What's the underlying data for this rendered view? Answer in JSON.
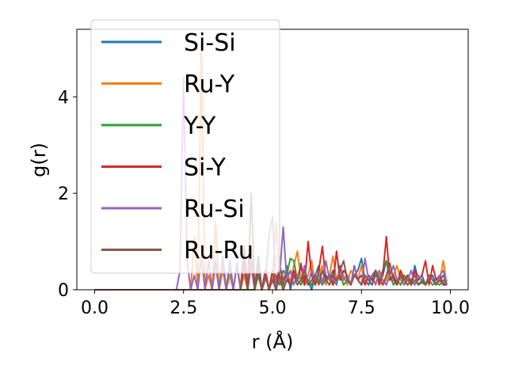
{
  "chart_data": {
    "type": "line",
    "title": "",
    "xlabel": "r (Å)",
    "ylabel": "g(r)",
    "xlim": [
      -0.5,
      10.5
    ],
    "ylim": [
      0,
      5.4
    ],
    "xticks": [
      0.0,
      2.5,
      5.0,
      7.5,
      10.0
    ],
    "xtick_labels": [
      "0.0",
      "2.5",
      "5.0",
      "7.5",
      "10.0"
    ],
    "yticks": [
      0,
      2,
      4
    ],
    "ytick_labels": [
      "0",
      "2",
      "4"
    ],
    "grid": false,
    "legend_position": "top-left",
    "series": [
      {
        "name": "Si-Si",
        "color": "#1f77b4",
        "x": [
          0.0,
          2.3,
          3.3,
          3.4,
          3.5,
          3.6,
          3.7,
          3.8,
          3.9,
          4.0,
          4.1,
          4.2,
          4.3,
          4.4,
          4.5,
          4.6,
          4.7,
          4.8,
          4.9,
          5.0,
          5.1,
          5.2,
          5.3,
          5.4,
          5.5,
          5.6,
          5.7,
          5.8,
          5.9,
          6.0,
          6.1,
          6.2,
          6.3,
          6.4,
          6.5,
          6.6,
          6.7,
          6.8,
          6.9,
          7.0,
          7.1,
          7.2,
          7.3,
          7.4,
          7.5,
          7.6,
          7.7,
          7.8,
          7.9,
          8.0,
          8.1,
          8.2,
          8.3,
          8.4,
          8.5,
          8.6,
          8.7,
          8.8,
          8.9,
          9.0,
          9.1,
          9.2,
          9.3,
          9.4,
          9.5,
          9.6,
          9.7,
          9.8,
          9.9
        ],
        "y": [
          0,
          0,
          0,
          0.6,
          0,
          0.5,
          0,
          0.6,
          0,
          0.55,
          0,
          0.6,
          0,
          0.5,
          0,
          0.7,
          0,
          0.4,
          0,
          0.35,
          0,
          0.3,
          0.1,
          0.5,
          0,
          0.3,
          0.2,
          0.55,
          0.1,
          0.2,
          0,
          0.3,
          0.5,
          0.1,
          0.3,
          0.2,
          0.4,
          0.1,
          0.5,
          0.2,
          0.3,
          0.1,
          0.3,
          0.4,
          0.65,
          0.2,
          0.1,
          0.3,
          0.4,
          0.2,
          0.3,
          0.6,
          0.2,
          0.3,
          0.1,
          0.4,
          0.2,
          0.3,
          0.1,
          0.5,
          0.2,
          0.3,
          0.1,
          0.2,
          0.3,
          0.1,
          0.2,
          0.3,
          0.1
        ]
      },
      {
        "name": "Ru-Y",
        "color": "#ff7f0e",
        "x": [
          0.0,
          2.6,
          2.7,
          2.8,
          2.9,
          3.0,
          3.1,
          3.2,
          3.3,
          3.4,
          3.5,
          3.6,
          3.7,
          3.8,
          3.9,
          4.0,
          4.1,
          4.2,
          4.3,
          4.4,
          4.5,
          4.6,
          4.7,
          4.8,
          4.9,
          5.0,
          5.1,
          5.2,
          5.3,
          5.4,
          5.5,
          5.6,
          5.7,
          5.8,
          5.9,
          6.0,
          6.1,
          6.2,
          6.3,
          6.4,
          6.5,
          6.6,
          6.7,
          6.8,
          6.9,
          7.0,
          7.1,
          7.2,
          7.3,
          7.4,
          7.5,
          7.6,
          7.7,
          7.8,
          7.9,
          8.0,
          8.1,
          8.2,
          8.3,
          8.4,
          8.5,
          8.6,
          8.7,
          8.8,
          8.9,
          9.0,
          9.1,
          9.2,
          9.3,
          9.4,
          9.5,
          9.6,
          9.7,
          9.8,
          9.9
        ],
        "y": [
          0,
          0,
          0,
          1.1,
          0,
          5.1,
          0,
          0.3,
          0,
          1.4,
          0,
          0.4,
          0,
          0.3,
          0,
          0.5,
          0,
          0.3,
          0,
          0.6,
          0,
          0.3,
          0,
          0.4,
          0,
          0.3,
          1.4,
          0.2,
          0,
          0.3,
          0.2,
          0.5,
          0.8,
          0.2,
          0.1,
          0.3,
          0.6,
          0.1,
          0.3,
          0.5,
          0.1,
          0.3,
          0.7,
          0.2,
          0.4,
          0.3,
          0.1,
          0.4,
          0.3,
          0.2,
          0.5,
          0.1,
          0.3,
          0.2,
          0.4,
          0.3,
          0.1,
          0.2,
          0.4,
          0.3,
          0.5,
          0.2,
          0.1,
          0.3,
          0.2,
          0.1,
          0.3,
          0.2,
          0.1,
          0.3,
          0.2,
          0.1,
          0.2,
          0.6,
          0.1
        ]
      },
      {
        "name": "Y-Y",
        "color": "#2ca02c",
        "x": [
          0.0,
          3.3,
          3.5,
          3.6,
          3.7,
          3.8,
          3.9,
          4.0,
          4.5,
          4.6,
          4.7,
          4.8,
          4.9,
          5.0,
          5.1,
          5.2,
          5.3,
          5.4,
          5.5,
          5.6,
          5.7,
          5.8,
          5.9,
          6.0,
          6.1,
          6.2,
          6.3,
          6.4,
          6.5,
          6.6,
          6.7,
          6.8,
          6.9,
          7.0,
          7.1,
          7.2,
          7.3,
          7.4,
          7.5,
          7.6,
          7.7,
          7.8,
          7.9,
          8.0,
          8.1,
          8.2,
          8.3,
          8.4,
          8.5,
          8.6,
          8.7,
          8.8,
          8.9,
          9.0,
          9.1,
          9.2,
          9.3,
          9.4,
          9.5,
          9.6,
          9.7,
          9.8,
          9.9
        ],
        "y": [
          0,
          0,
          0,
          0.7,
          0,
          0.5,
          0,
          0,
          0,
          0.3,
          0,
          0.4,
          0,
          0.2,
          0.3,
          0.1,
          0.4,
          0.3,
          0.65,
          0.6,
          0.2,
          0.1,
          0.3,
          0.2,
          0.1,
          0.3,
          0.2,
          0.1,
          0.2,
          0.3,
          0.1,
          0.2,
          0.3,
          0.1,
          0.2,
          0.1,
          0.3,
          0.2,
          0.1,
          0.3,
          0.2,
          0.1,
          0.3,
          0.2,
          0.4,
          0.6,
          0.3,
          0.1,
          0.2,
          0.1,
          0.3,
          0.2,
          0.1,
          0.2,
          0.1,
          0.15,
          0.1,
          0.2,
          0.1,
          0.15,
          0.1,
          0.2,
          0.1
        ]
      },
      {
        "name": "Si-Y",
        "color": "#d62728",
        "x": [
          0.0,
          4.0,
          4.1,
          4.2,
          4.3,
          4.4,
          4.5,
          4.6,
          4.7,
          4.8,
          4.9,
          5.0,
          5.1,
          5.2,
          5.3,
          5.4,
          5.5,
          5.6,
          5.7,
          5.8,
          5.9,
          6.0,
          6.1,
          6.2,
          6.3,
          6.4,
          6.5,
          6.6,
          6.7,
          6.8,
          6.9,
          7.0,
          7.1,
          7.2,
          7.3,
          7.4,
          7.5,
          7.6,
          7.7,
          7.8,
          7.9,
          8.0,
          8.1,
          8.2,
          8.3,
          8.4,
          8.5,
          8.6,
          8.7,
          8.8,
          8.9,
          9.0,
          9.1,
          9.2,
          9.3,
          9.4,
          9.5,
          9.6,
          9.7,
          9.8,
          9.9
        ],
        "y": [
          0,
          0,
          0,
          0.9,
          0,
          0.6,
          0,
          0.5,
          0,
          0.4,
          0,
          0.4,
          0.1,
          0.5,
          0.2,
          0.3,
          0.1,
          0.4,
          0.2,
          0.5,
          0.1,
          1.0,
          0.3,
          0.1,
          0.4,
          0.9,
          0.2,
          0.3,
          0.1,
          0.8,
          0.2,
          0.4,
          0.3,
          0.1,
          0.5,
          0.2,
          0.3,
          0.1,
          0.3,
          0.2,
          0.4,
          0.1,
          0.3,
          1.1,
          0.2,
          0.3,
          0.1,
          0.4,
          0.2,
          0.3,
          0.1,
          0.4,
          0.2,
          0.3,
          0.6,
          0.1,
          0.5,
          0.2,
          0.3,
          0.1,
          0.2
        ]
      },
      {
        "name": "Ru-Si",
        "color": "#9467bd",
        "x": [
          0.0,
          2.2,
          2.3,
          2.4,
          2.5,
          2.6,
          2.7,
          2.8,
          2.9,
          3.0,
          3.1,
          3.2,
          3.3,
          3.4,
          3.5,
          3.6,
          3.7,
          3.8,
          3.9,
          4.0,
          4.1,
          4.2,
          4.3,
          4.4,
          4.5,
          4.6,
          4.7,
          4.8,
          4.9,
          5.0,
          5.1,
          5.2,
          5.3,
          5.4,
          5.5,
          5.6,
          5.7,
          5.8,
          5.9,
          6.0,
          6.1,
          6.2,
          6.3,
          6.4,
          6.5,
          6.6,
          6.7,
          6.8,
          6.9,
          7.0,
          7.1,
          7.2,
          7.3,
          7.4,
          7.5,
          7.6,
          7.7,
          7.8,
          7.9,
          8.0,
          8.1,
          8.2,
          8.3,
          8.4,
          8.5,
          8.6,
          8.7,
          8.8,
          8.9,
          9.0,
          9.1,
          9.2,
          9.3,
          9.4,
          9.5,
          9.6,
          9.7,
          9.8,
          9.9
        ],
        "y": [
          0,
          0,
          0,
          0.4,
          4.4,
          0.6,
          0,
          0.3,
          0,
          0.7,
          0,
          0.6,
          0,
          0.5,
          0,
          0.6,
          0,
          0.5,
          0,
          0.55,
          0,
          0.5,
          0,
          0.9,
          0,
          0.4,
          0,
          0.2,
          1.1,
          1.5,
          0,
          0.3,
          1.3,
          0.2,
          0.4,
          0.1,
          0.3,
          0.2,
          0.5,
          0.1,
          0.4,
          0.2,
          0.3,
          0.1,
          0.6,
          0.2,
          0.3,
          0.1,
          0.4,
          0.2,
          0.3,
          0.1,
          0.5,
          0.2,
          0.1,
          0.65,
          0.2,
          0.3,
          0.1,
          0.4,
          0.2,
          0.1,
          0.3,
          0.5,
          0.2,
          0.3,
          0.1,
          0.2,
          0.4,
          0.1,
          0.3,
          0.2,
          0.1,
          0.3,
          0.2,
          0.1,
          0.3,
          0.4,
          0.1
        ]
      },
      {
        "name": "Ru-Ru",
        "color": "#8c564b",
        "x": [
          0.0,
          4.0,
          4.1,
          4.2,
          4.3,
          4.4,
          4.5,
          4.6,
          4.7,
          4.8,
          4.9,
          5.0,
          5.1,
          5.2,
          5.3,
          5.4,
          5.5,
          5.6,
          5.7,
          5.8,
          5.9,
          6.0,
          6.1,
          6.2,
          6.3,
          6.4,
          6.5,
          6.6,
          6.7,
          6.8,
          6.9,
          7.0,
          7.1,
          7.2,
          7.3,
          7.4,
          7.5,
          7.6,
          7.7,
          7.8,
          7.9,
          8.0,
          8.1,
          8.2,
          8.3,
          8.4,
          8.5,
          8.6,
          8.7,
          8.8,
          8.9,
          9.0,
          9.1,
          9.2,
          9.3,
          9.4,
          9.5,
          9.6,
          9.7,
          9.8,
          9.9
        ],
        "y": [
          0,
          0,
          0,
          0.5,
          0,
          2.0,
          0,
          0.4,
          0,
          0.3,
          0,
          0.2,
          0,
          0.3,
          0,
          0.2,
          0.1,
          0.3,
          0.1,
          0.2,
          0.4,
          0.1,
          0.2,
          0.3,
          0.1,
          0.4,
          0.2,
          0.1,
          0.3,
          0.2,
          0.4,
          0.6,
          0.2,
          0.1,
          0.3,
          0.2,
          0.1,
          0.3,
          0.2,
          0.1,
          0.4,
          0.2,
          0.1,
          0.3,
          0.55,
          0.2,
          0.1,
          0.3,
          0.2,
          0.1,
          0.2,
          0.3,
          0.1,
          0.2,
          0.1,
          0.3,
          0.2,
          0.1,
          0.2,
          0.1,
          0.1
        ]
      }
    ]
  }
}
